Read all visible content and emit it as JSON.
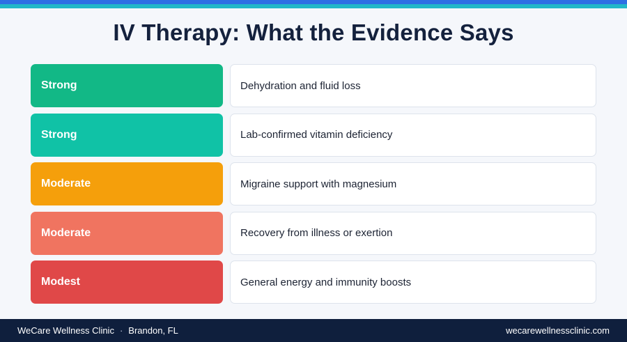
{
  "title": "IV Therapy: What the Evidence Says",
  "rows": [
    {
      "level": "Strong",
      "description": "Dehydration and fluid loss",
      "color": "#12b886"
    },
    {
      "level": "Strong",
      "description": "Lab-confirmed vitamin deficiency",
      "color": "#10c2a6"
    },
    {
      "level": "Moderate",
      "description": "Migraine support with magnesium",
      "color": "#f59f0b"
    },
    {
      "level": "Moderate",
      "description": "Recovery from illness or exertion",
      "color": "#f07460"
    },
    {
      "level": "Modest",
      "description": "General energy and immunity boosts",
      "color": "#e04848"
    }
  ],
  "footer": {
    "clinic_name": "WeCare Wellness Clinic",
    "separator": "·",
    "location": "Brandon, FL",
    "website": "wecarewellnessclinic.com"
  }
}
